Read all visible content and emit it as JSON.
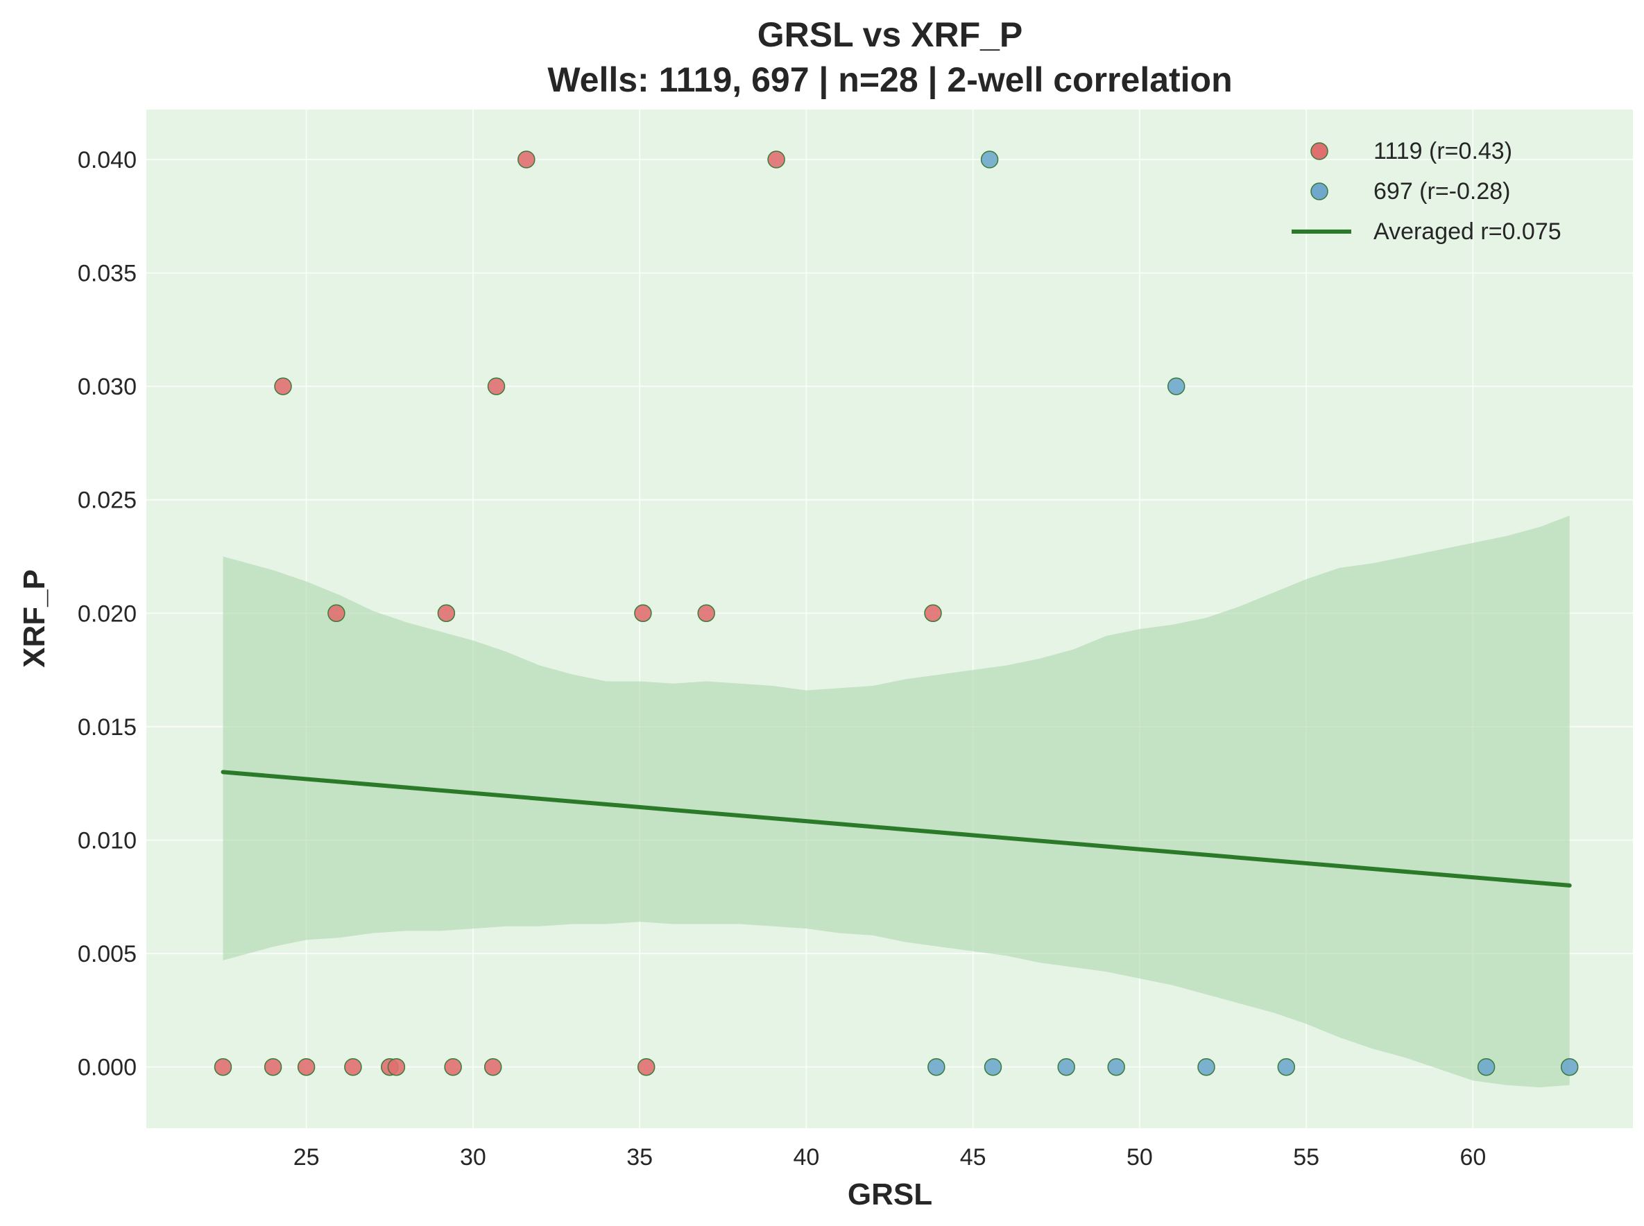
{
  "chart_data": {
    "type": "scatter",
    "title": "GRSL vs XRF_P",
    "subtitle": "Wells: 1119, 697 | n=28 | 2-well correlation",
    "xlabel": "GRSL",
    "ylabel": "XRF_P",
    "xlim": [
      20.2,
      64.8
    ],
    "ylim": [
      -0.0027,
      0.0422
    ],
    "xticks": [
      25,
      30,
      35,
      40,
      45,
      50,
      55,
      60
    ],
    "xtick_labels": [
      "25",
      "30",
      "35",
      "40",
      "45",
      "50",
      "55",
      "60"
    ],
    "yticks": [
      0.0,
      0.005,
      0.01,
      0.015,
      0.02,
      0.025,
      0.03,
      0.035,
      0.04
    ],
    "ytick_labels": [
      "0.000",
      "0.005",
      "0.010",
      "0.015",
      "0.020",
      "0.025",
      "0.030",
      "0.035",
      "0.040"
    ],
    "grid": true,
    "legend_position": "top-right",
    "background_color": "#e6f4e6",
    "series": [
      {
        "name": "1119 (r=0.43)",
        "kind": "scatter",
        "color": "#e07070",
        "edge_color": "#3a7a3a",
        "points": [
          [
            22.5,
            0.0
          ],
          [
            24.0,
            0.0
          ],
          [
            25.0,
            0.0
          ],
          [
            26.4,
            0.0
          ],
          [
            27.5,
            0.0
          ],
          [
            27.7,
            0.0
          ],
          [
            29.4,
            0.0
          ],
          [
            30.6,
            0.0
          ],
          [
            35.2,
            0.0
          ],
          [
            25.9,
            0.02
          ],
          [
            29.2,
            0.02
          ],
          [
            35.1,
            0.02
          ],
          [
            37.0,
            0.02
          ],
          [
            43.8,
            0.02
          ],
          [
            24.3,
            0.03
          ],
          [
            30.7,
            0.03
          ],
          [
            31.6,
            0.04
          ],
          [
            39.1,
            0.04
          ]
        ]
      },
      {
        "name": "697 (r=-0.28)",
        "kind": "scatter",
        "color": "#6fa8cc",
        "edge_color": "#3a7a3a",
        "points": [
          [
            43.9,
            0.0
          ],
          [
            45.6,
            0.0
          ],
          [
            47.8,
            0.0
          ],
          [
            49.3,
            0.0
          ],
          [
            52.0,
            0.0
          ],
          [
            54.4,
            0.0
          ],
          [
            60.4,
            0.0
          ],
          [
            62.9,
            0.0
          ],
          [
            51.1,
            0.03
          ],
          [
            45.5,
            0.04
          ]
        ]
      },
      {
        "name": "Averaged r=0.075",
        "kind": "line",
        "color": "#2a7a2a",
        "x": [
          22.5,
          62.9
        ],
        "y": [
          0.013,
          0.008
        ]
      }
    ],
    "confidence_band": {
      "color": "#a8d4a8",
      "x": [
        22.5,
        24.0,
        25.0,
        26.0,
        27.0,
        28.0,
        29.0,
        30.0,
        31.0,
        32.0,
        33.0,
        34.0,
        35.0,
        36.0,
        37.0,
        38.0,
        39.0,
        40.0,
        41.0,
        42.0,
        43.0,
        44.0,
        45.0,
        46.0,
        47.0,
        48.0,
        49.0,
        50.0,
        51.0,
        52.0,
        53.0,
        54.0,
        55.0,
        56.0,
        57.0,
        58.0,
        59.0,
        60.0,
        61.0,
        62.0,
        62.9
      ],
      "upper": [
        0.0225,
        0.0219,
        0.0214,
        0.0208,
        0.0201,
        0.0196,
        0.0192,
        0.0188,
        0.0183,
        0.0177,
        0.0173,
        0.017,
        0.017,
        0.0169,
        0.017,
        0.0169,
        0.0168,
        0.0166,
        0.0167,
        0.0168,
        0.0171,
        0.0173,
        0.0175,
        0.0177,
        0.018,
        0.0184,
        0.019,
        0.0193,
        0.0195,
        0.0198,
        0.0203,
        0.0209,
        0.0215,
        0.022,
        0.0222,
        0.0225,
        0.0228,
        0.0231,
        0.0234,
        0.0238,
        0.0243
      ],
      "lower": [
        0.0047,
        0.0053,
        0.0056,
        0.0057,
        0.0059,
        0.006,
        0.006,
        0.0061,
        0.0062,
        0.0062,
        0.0063,
        0.0063,
        0.0064,
        0.0063,
        0.0063,
        0.0063,
        0.0062,
        0.0061,
        0.0059,
        0.0058,
        0.0055,
        0.0053,
        0.0051,
        0.0049,
        0.0046,
        0.0044,
        0.0042,
        0.0039,
        0.0036,
        0.0032,
        0.0028,
        0.0024,
        0.0019,
        0.0013,
        0.0008,
        0.0004,
        -0.0001,
        -0.0006,
        -0.0008,
        -0.0009,
        -0.0008
      ]
    }
  }
}
